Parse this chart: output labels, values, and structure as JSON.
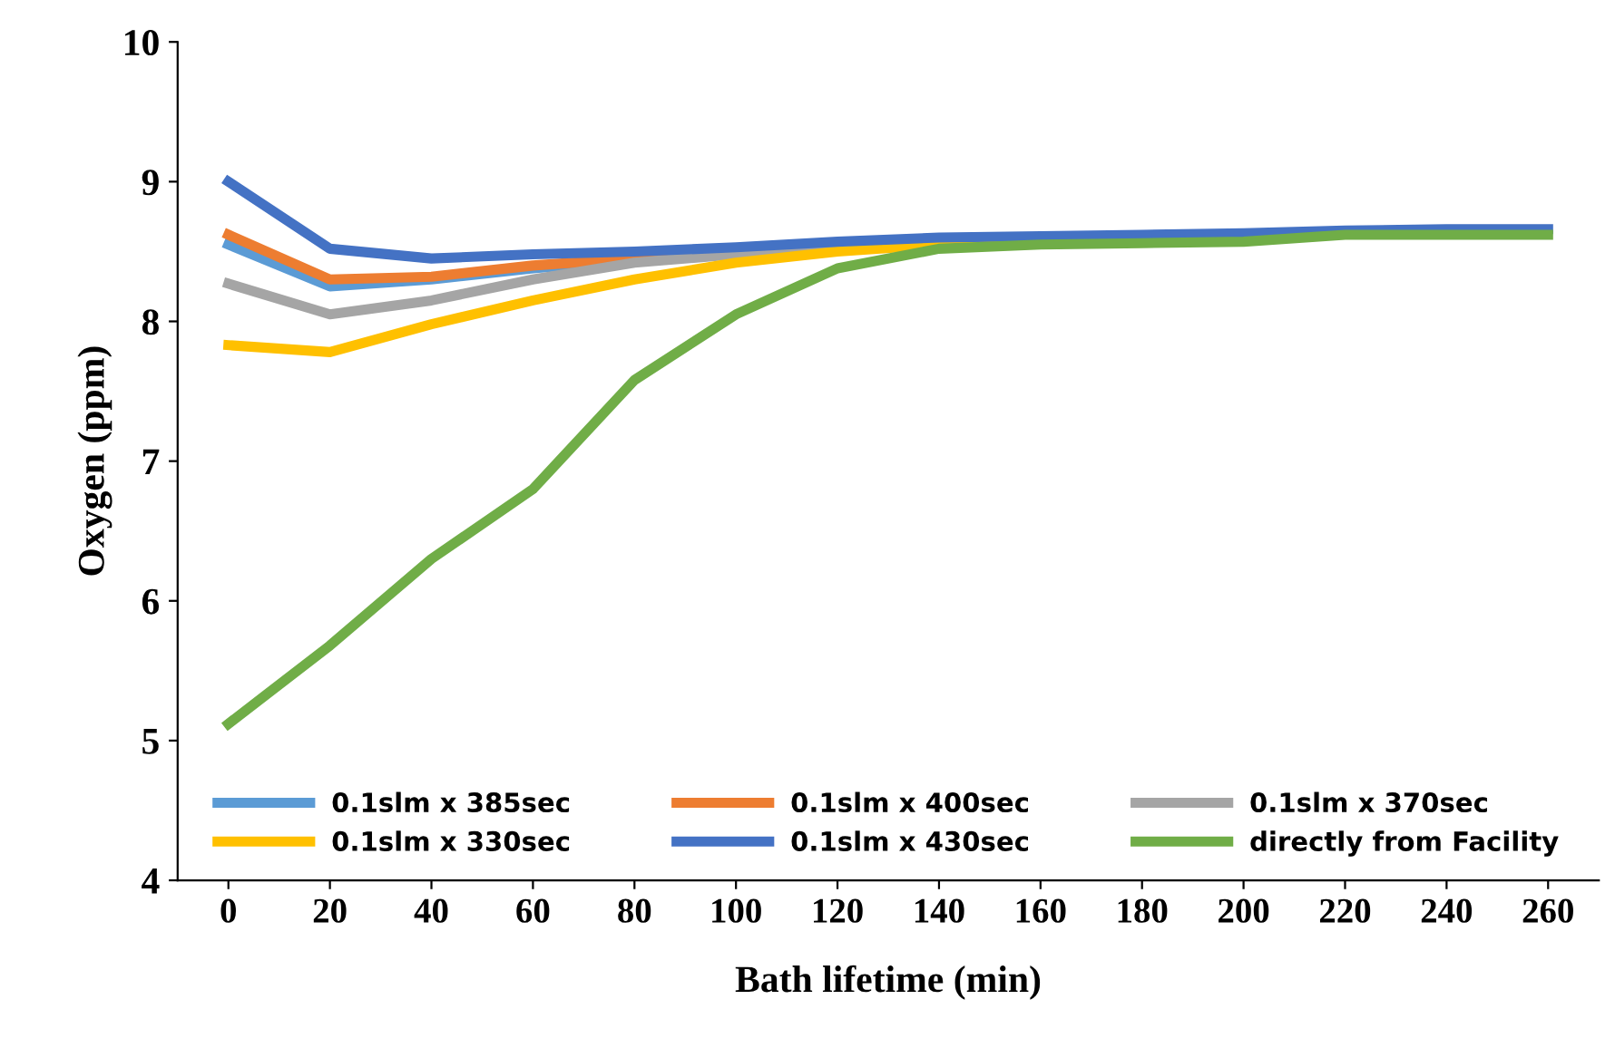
{
  "chart_data": {
    "type": "line",
    "xlabel": "Bath lifetime (min)",
    "ylabel": "Oxygen (ppm)",
    "categories": [
      "0",
      "20",
      "40",
      "60",
      "80",
      "100",
      "120",
      "140",
      "160",
      "180",
      "200",
      "220",
      "240",
      "260"
    ],
    "ylim": [
      4,
      10
    ],
    "yticks": [
      4,
      5,
      6,
      7,
      8,
      9,
      10
    ],
    "grid": false,
    "legend": "bottom",
    "marker": "none",
    "line_style": "solid",
    "series": [
      {
        "name": "0.1slm x 385sec",
        "color": "#5b9bd5",
        "values": [
          8.55,
          8.25,
          8.3,
          8.38,
          8.44,
          8.5,
          null,
          null,
          null,
          null,
          null,
          null,
          null,
          null
        ]
      },
      {
        "name": "0.1slm x 400sec",
        "color": "#ed7d31",
        "values": [
          8.62,
          8.3,
          8.32,
          8.4,
          8.45,
          8.5,
          null,
          null,
          null,
          null,
          null,
          null,
          null,
          null
        ]
      },
      {
        "name": "0.1slm x 370sec",
        "color": "#a5a5a5",
        "values": [
          8.27,
          8.05,
          8.15,
          8.3,
          8.42,
          8.48,
          8.53,
          null,
          null,
          null,
          null,
          null,
          null,
          null
        ]
      },
      {
        "name": "0.1slm x 330sec",
        "color": "#ffc000",
        "values": [
          7.83,
          7.78,
          7.98,
          8.15,
          8.3,
          8.42,
          8.5,
          8.55,
          8.58,
          null,
          null,
          null,
          null,
          null
        ]
      },
      {
        "name": "0.1slm x 430sec",
        "color": "#4472c4",
        "values": [
          9.0,
          8.52,
          8.45,
          8.48,
          8.5,
          8.53,
          8.57,
          8.6,
          8.61,
          8.62,
          8.63,
          8.65,
          8.66,
          8.66
        ]
      },
      {
        "name": "directly from Facility",
        "color": "#70ad47",
        "values": [
          5.12,
          5.68,
          6.3,
          6.8,
          7.58,
          8.05,
          8.38,
          8.52,
          8.55,
          8.56,
          8.57,
          8.62,
          8.62,
          8.62
        ]
      }
    ]
  }
}
